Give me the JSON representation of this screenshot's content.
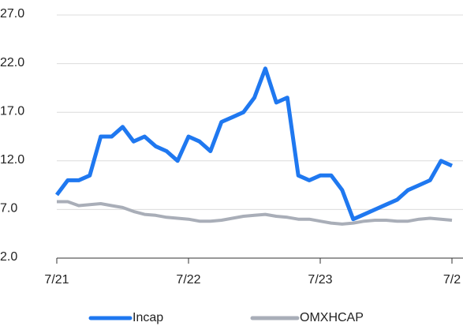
{
  "chart_data": {
    "type": "line",
    "categories": [
      "7/21",
      null,
      null,
      null,
      null,
      null,
      null,
      null,
      null,
      null,
      null,
      null,
      "7/22",
      null,
      null,
      null,
      null,
      null,
      null,
      null,
      null,
      null,
      null,
      null,
      "7/23",
      null,
      null,
      null,
      null,
      null,
      null,
      null,
      null,
      null,
      null,
      null,
      "7/2"
    ],
    "series": [
      {
        "name": "Incap",
        "color": "#1f78f0",
        "values": [
          8.5,
          10,
          10,
          10.5,
          14.5,
          14.5,
          15.5,
          14,
          14.5,
          13.5,
          13,
          12,
          14.5,
          14,
          13,
          16,
          16.5,
          17,
          18.5,
          21.5,
          18,
          18.5,
          10.5,
          10,
          10.5,
          10.5,
          9,
          6,
          6.5,
          7,
          7.5,
          8,
          9,
          9.5,
          10,
          12,
          11.5
        ]
      },
      {
        "name": "OMXHCAP",
        "color": "#a9aeb8",
        "values": [
          7.8,
          7.8,
          7.4,
          7.5,
          7.6,
          7.4,
          7.2,
          6.8,
          6.5,
          6.4,
          6.2,
          6.1,
          6.0,
          5.8,
          5.8,
          5.9,
          6.1,
          6.3,
          6.4,
          6.5,
          6.3,
          6.2,
          6.0,
          6.0,
          5.8,
          5.6,
          5.5,
          5.6,
          5.8,
          5.9,
          5.9,
          5.8,
          5.8,
          6.0,
          6.1,
          6.0,
          5.9
        ]
      }
    ],
    "ylim": [
      2,
      27
    ],
    "yticks": [
      {
        "value": 2,
        "label": "2.0"
      },
      {
        "value": 7,
        "label": "7.0"
      },
      {
        "value": 12,
        "label": "12.0"
      },
      {
        "value": 17,
        "label": "17.0"
      },
      {
        "value": 22,
        "label": "22.0"
      },
      {
        "value": 27,
        "label": "27.0"
      }
    ],
    "grid": true,
    "legend": "bottom"
  }
}
